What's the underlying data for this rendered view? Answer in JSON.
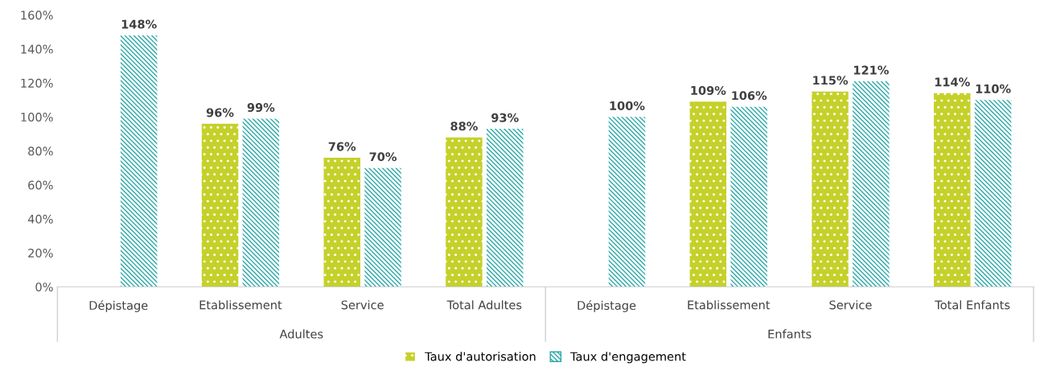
{
  "chart_data": {
    "type": "bar",
    "categories": [
      "Dépistage",
      "Etablissement",
      "Service",
      "Total Adultes",
      "Dépistage",
      "Etablissement",
      "Service",
      "Total Enfants"
    ],
    "annotations": [
      "Adultes",
      "Enfants"
    ],
    "series": [
      {
        "name": "Taux d'autorisation",
        "color": "#c5d12a",
        "values": [
          null,
          96,
          76,
          88,
          null,
          109,
          115,
          114
        ],
        "value_labels": [
          null,
          "96%",
          "76%",
          "88%",
          null,
          "109%",
          "115%",
          "114%"
        ]
      },
      {
        "name": "Taux d'engagement",
        "color": "#2aa8a8",
        "values": [
          148,
          99,
          70,
          93,
          100,
          106,
          121,
          110
        ],
        "value_labels": [
          "148%",
          "99%",
          "70%",
          "93%",
          "100%",
          "106%",
          "121%",
          "110%"
        ]
      }
    ],
    "ylim": [
      0,
      160
    ],
    "yticks": [
      {
        "value": 0,
        "label": "0%"
      },
      {
        "value": 20,
        "label": "20%"
      },
      {
        "value": 40,
        "label": "40%"
      },
      {
        "value": 60,
        "label": "60%"
      },
      {
        "value": 80,
        "label": "80%"
      },
      {
        "value": 100,
        "label": "100%"
      },
      {
        "value": 120,
        "label": "120%"
      },
      {
        "value": 140,
        "label": "140%"
      },
      {
        "value": 160,
        "label": "160%"
      }
    ],
    "grid": false,
    "legend": "bottom"
  }
}
